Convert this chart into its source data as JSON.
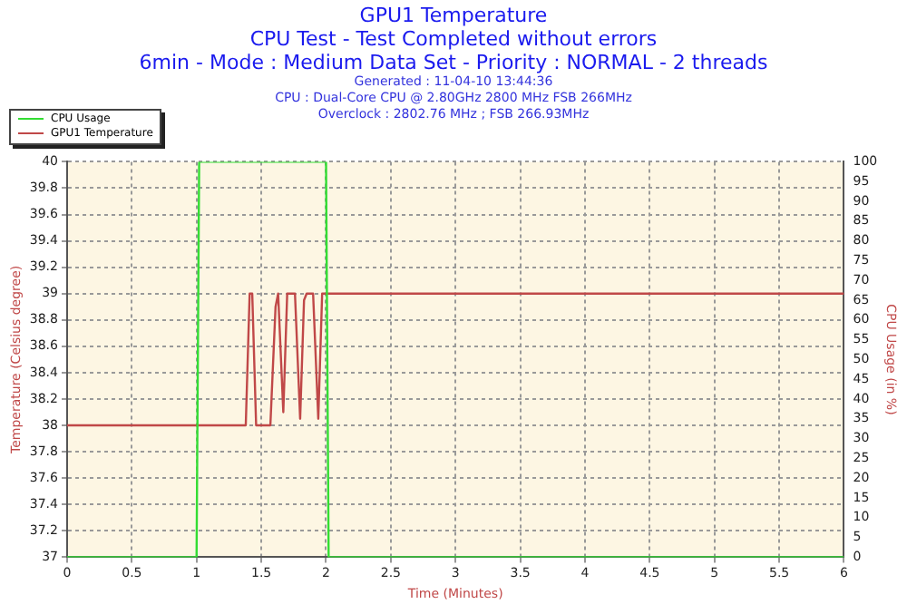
{
  "chart_data": {
    "type": "line",
    "title": "GPU1 Temperature",
    "subtitle": "CPU Test - Test Completed without errors\n6min - Mode : Medium Data Set - Priority : NORMAL - 2 threads",
    "annotations": [
      "Generated : 11-04-10 13:44:36",
      "CPU : Dual-Core CPU @ 2.80GHz 2800 MHz FSB 266MHz",
      "Overclock : 2802.76 MHz ; FSB 266.93MHz"
    ],
    "xlabel": "Time (Minutes)",
    "ylabel": "Temperature (Celsius degree)",
    "y2label": "CPU Usage (in %)",
    "xlim": [
      0,
      6
    ],
    "xticks": [
      0,
      0.5,
      1,
      1.5,
      2,
      2.5,
      3,
      3.5,
      4,
      4.5,
      5,
      5.5,
      6
    ],
    "ylim": [
      37,
      40
    ],
    "yticks": [
      37,
      37.2,
      37.4,
      37.6,
      37.8,
      38,
      38.2,
      38.4,
      38.6,
      38.8,
      39,
      39.2,
      39.4,
      39.6,
      39.8,
      40
    ],
    "y2lim": [
      0,
      100
    ],
    "y2ticks": [
      0,
      5,
      10,
      15,
      20,
      25,
      30,
      35,
      40,
      45,
      50,
      55,
      60,
      65,
      70,
      75,
      80,
      85,
      90,
      95,
      100
    ],
    "grid": true,
    "legend": "top left",
    "marker": "none",
    "line_style": "solid",
    "series": [
      {
        "name": "CPU Usage",
        "color": "#33dd33",
        "axis": "y2",
        "x": [
          0,
          1,
          1.02,
          2,
          2.02,
          6
        ],
        "values": [
          0,
          0,
          100,
          100,
          0,
          0
        ]
      },
      {
        "name": "GPU1 Temperature",
        "color": "#c04848",
        "axis": "y",
        "x": [
          0,
          1.38,
          1.41,
          1.43,
          1.46,
          1.57,
          1.61,
          1.63,
          1.67,
          1.7,
          1.72,
          1.76,
          1.8,
          1.83,
          1.85,
          1.9,
          1.94,
          1.97,
          2,
          6
        ],
        "values": [
          38,
          38,
          39,
          39,
          38,
          38,
          38.9,
          39,
          38.1,
          39,
          39,
          39,
          38.05,
          38.95,
          39,
          39,
          38.05,
          39,
          39,
          39
        ]
      }
    ]
  }
}
